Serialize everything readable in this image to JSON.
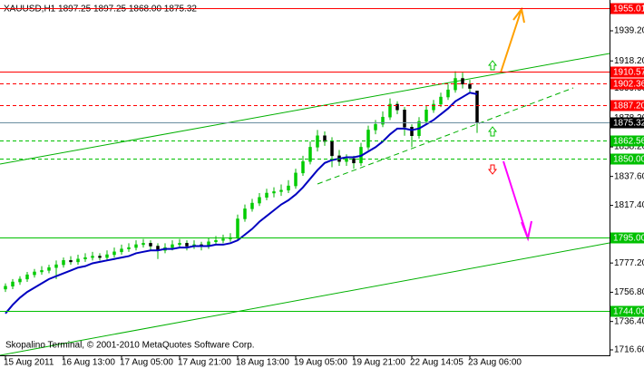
{
  "chart_data": {
    "type": "candlestick",
    "title": "XAUUSD,H1  1897.25 1897.25 1868.00 1875.32",
    "footer": "Skopalino Terminal, © 2001-2010 MetaQuotes Software Corp.",
    "x": [
      "15 Aug 2011",
      null,
      null,
      null,
      null,
      null,
      null,
      null,
      "16 Aug 13:00",
      null,
      null,
      null,
      null,
      null,
      null,
      null,
      "17 Aug 05:00",
      null,
      null,
      null,
      null,
      null,
      null,
      null,
      "17 Aug 21:00",
      null,
      null,
      null,
      null,
      null,
      null,
      null,
      "18 Aug 13:00",
      null,
      null,
      null,
      null,
      null,
      null,
      null,
      "19 Aug 05:00",
      null,
      null,
      null,
      null,
      null,
      null,
      null,
      "19 Aug 21:00",
      null,
      null,
      null,
      null,
      null,
      null,
      null,
      "22 Aug 14:05",
      null,
      null,
      null,
      null,
      null,
      null,
      null,
      "23 Aug 06:00",
      null
    ],
    "candles": [
      [
        1759,
        1763,
        1757,
        1761
      ],
      [
        1761,
        1766,
        1759,
        1764
      ],
      [
        1764,
        1768,
        1762,
        1766
      ],
      [
        1766,
        1771,
        1764,
        1769
      ],
      [
        1769,
        1773,
        1767,
        1771
      ],
      [
        1771,
        1775,
        1769,
        1772
      ],
      [
        1772,
        1776,
        1770,
        1774
      ],
      [
        1774,
        1779,
        1766,
        1776
      ],
      [
        1776,
        1781,
        1774,
        1779
      ],
      [
        1779,
        1782,
        1776,
        1778
      ],
      [
        1778,
        1783,
        1776,
        1780
      ],
      [
        1780,
        1784,
        1778,
        1781
      ],
      [
        1781,
        1785,
        1779,
        1782
      ],
      [
        1782,
        1784,
        1779,
        1781
      ],
      [
        1781,
        1786,
        1779,
        1783
      ],
      [
        1783,
        1788,
        1781,
        1785
      ],
      [
        1785,
        1790,
        1783,
        1787
      ],
      [
        1787,
        1791,
        1785,
        1788
      ],
      [
        1788,
        1793,
        1786,
        1790
      ],
      [
        1790,
        1794,
        1788,
        1791
      ],
      [
        1791,
        1793,
        1786,
        1789
      ],
      [
        1789,
        1791,
        1780,
        1786
      ],
      [
        1786,
        1791,
        1784,
        1788
      ],
      [
        1788,
        1793,
        1786,
        1790
      ],
      [
        1790,
        1794,
        1788,
        1791
      ],
      [
        1791,
        1793,
        1786,
        1789
      ],
      [
        1789,
        1793,
        1787,
        1790
      ],
      [
        1790,
        1792,
        1786,
        1789
      ],
      [
        1789,
        1795,
        1787,
        1792
      ],
      [
        1792,
        1796,
        1790,
        1793
      ],
      [
        1793,
        1797,
        1791,
        1794
      ],
      [
        1794,
        1798,
        1792,
        1795
      ],
      [
        1795,
        1811,
        1793,
        1808
      ],
      [
        1808,
        1818,
        1806,
        1815
      ],
      [
        1815,
        1822,
        1813,
        1819
      ],
      [
        1819,
        1826,
        1817,
        1823
      ],
      [
        1823,
        1829,
        1821,
        1826
      ],
      [
        1826,
        1830,
        1823,
        1827
      ],
      [
        1827,
        1832,
        1824,
        1828
      ],
      [
        1828,
        1835,
        1826,
        1831
      ],
      [
        1831,
        1843,
        1829,
        1840
      ],
      [
        1840,
        1852,
        1838,
        1848
      ],
      [
        1848,
        1862,
        1846,
        1858
      ],
      [
        1858,
        1870,
        1855,
        1866
      ],
      [
        1866,
        1869,
        1859,
        1862
      ],
      [
        1862,
        1865,
        1844,
        1852
      ],
      [
        1852,
        1856,
        1845,
        1848
      ],
      [
        1848,
        1853,
        1845,
        1850
      ],
      [
        1850,
        1852,
        1843,
        1847
      ],
      [
        1847,
        1861,
        1845,
        1858
      ],
      [
        1858,
        1873,
        1856,
        1870
      ],
      [
        1870,
        1877,
        1867,
        1874
      ],
      [
        1874,
        1883,
        1872,
        1879
      ],
      [
        1879,
        1892,
        1877,
        1888
      ],
      [
        1888,
        1890,
        1881,
        1884
      ],
      [
        1884,
        1886,
        1866,
        1872
      ],
      [
        1872,
        1874,
        1858,
        1866
      ],
      [
        1866,
        1879,
        1864,
        1876
      ],
      [
        1876,
        1887,
        1874,
        1884
      ],
      [
        1884,
        1891,
        1882,
        1888
      ],
      [
        1888,
        1896,
        1886,
        1893
      ],
      [
        1893,
        1902,
        1891,
        1898
      ],
      [
        1898,
        1911,
        1896,
        1906
      ],
      [
        1906,
        1910,
        1899,
        1902
      ],
      [
        1902,
        1905,
        1896,
        1899
      ],
      [
        1897.25,
        1897.25,
        1868,
        1875.32
      ]
    ],
    "bull_color": "#00cc00",
    "bear_color": "#000000",
    "wick_color": "#00b000",
    "ma_color": "#0000c0",
    "ma_values": [
      1742,
      1748,
      1753,
      1757,
      1760,
      1763,
      1766,
      1768,
      1770,
      1772,
      1774,
      1775,
      1777,
      1778,
      1779,
      1780,
      1781,
      1782,
      1784,
      1785,
      1786,
      1786,
      1787,
      1787,
      1788,
      1788,
      1789,
      1789,
      1789,
      1790,
      1790,
      1791,
      1793,
      1797,
      1801,
      1806,
      1810,
      1814,
      1818,
      1821,
      1825,
      1830,
      1836,
      1842,
      1847,
      1849,
      1850,
      1851,
      1851,
      1852,
      1855,
      1858,
      1862,
      1867,
      1871,
      1871,
      1870,
      1871,
      1874,
      1877,
      1881,
      1885,
      1890,
      1893,
      1896,
      1895
    ],
    "ylim": [
      1712.8,
      1960.7
    ],
    "yticks": [
      {
        "value": 1939.2,
        "label": "1939.20"
      },
      {
        "value": 1918.2,
        "label": "1918.20"
      },
      {
        "value": 1899,
        "label": "1899.00"
      },
      {
        "value": 1878.2,
        "label": "1878.20"
      },
      {
        "value": 1858.2,
        "label": "1858.20"
      },
      {
        "value": 1837.6,
        "label": "1837.60"
      },
      {
        "value": 1817.4,
        "label": "1817.40"
      },
      {
        "value": 1777.2,
        "label": "1777.20"
      },
      {
        "value": 1756.8,
        "label": "1756.80"
      },
      {
        "value": 1736.4,
        "label": "1736.40"
      },
      {
        "value": 1716.6,
        "label": "1716.60"
      }
    ],
    "levels": [
      {
        "value": 1955.01,
        "label": "1955.01",
        "color": "#ff0000",
        "style": "solid"
      },
      {
        "value": 1910.57,
        "label": "1910.57",
        "color": "#ff0000",
        "style": "solid"
      },
      {
        "value": 1902.36,
        "label": "1902.36",
        "color": "#ff0000",
        "style": "dash"
      },
      {
        "value": 1887.2,
        "label": "1887.20",
        "color": "#ff0000",
        "style": "dash"
      },
      {
        "value": 1875.32,
        "label": "1875.32",
        "color": "#000000",
        "style": "solid"
      },
      {
        "value": 1862.56,
        "label": "1862.56",
        "color": "#00c000",
        "style": "dash"
      },
      {
        "value": 1850,
        "label": "1850.00",
        "color": "#00c000",
        "style": "dash"
      },
      {
        "value": 1795,
        "label": "1795.00",
        "color": "#00c000",
        "style": "solid"
      },
      {
        "value": 1744,
        "label": "1744.00",
        "color": "#00c000",
        "style": "solid"
      }
    ]
  }
}
